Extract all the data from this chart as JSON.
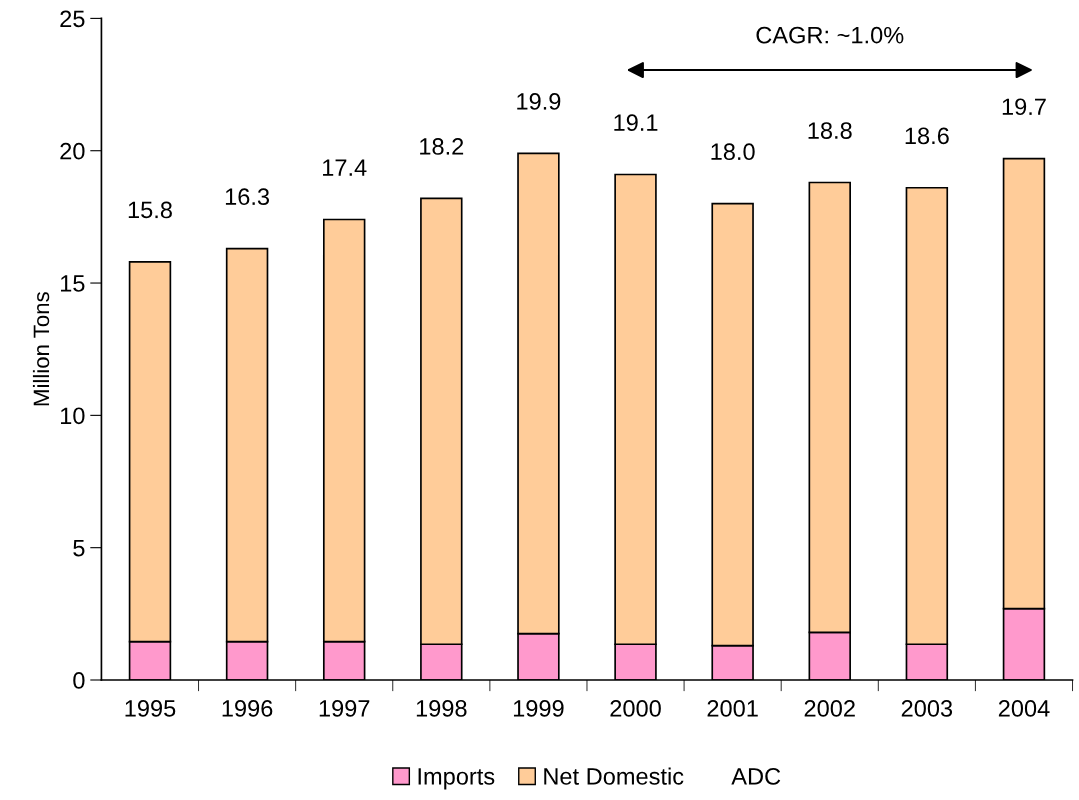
{
  "chart_data": {
    "type": "bar",
    "stacked": true,
    "ylabel": "Million Tons",
    "categories": [
      "1995",
      "1996",
      "1997",
      "1998",
      "1999",
      "2000",
      "2001",
      "2002",
      "2003",
      "2004"
    ],
    "series": [
      {
        "name": "Imports",
        "color": "#ff99cc",
        "values": [
          1.45,
          1.45,
          1.45,
          1.35,
          1.75,
          1.35,
          1.3,
          1.8,
          1.35,
          2.7
        ]
      },
      {
        "name": "Net Domestic",
        "color": "#ffcc99",
        "values": [
          14.35,
          14.85,
          15.95,
          16.85,
          18.15,
          17.75,
          16.7,
          17.0,
          17.25,
          17.0
        ]
      }
    ],
    "totals": [
      "15.8",
      "16.3",
      "17.4",
      "18.2",
      "19.9",
      "19.1",
      "18.0",
      "18.8",
      "18.6",
      "19.7"
    ],
    "annotations": [
      "ADC",
      "CAGR: ~1.0%"
    ],
    "ylim": [
      0,
      25
    ],
    "yticks": [
      0,
      5,
      10,
      15,
      20,
      25
    ],
    "grid": false,
    "legend": "bottom"
  }
}
